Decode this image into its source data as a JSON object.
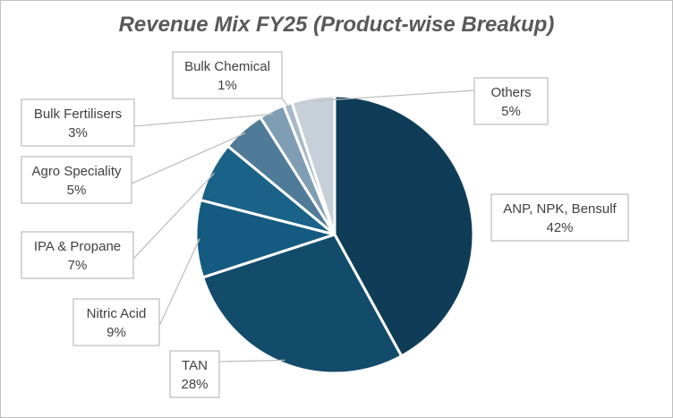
{
  "chart_data": {
    "type": "pie",
    "title": "Revenue Mix FY25 (Product-wise Breakup)",
    "slices": [
      {
        "name": "ANP, NPK, Bensulf",
        "value": 42,
        "label": "42%",
        "color": "#0f3d57"
      },
      {
        "name": "TAN",
        "value": 28,
        "label": "28%",
        "color": "#134b6b"
      },
      {
        "name": "Nitric Acid",
        "value": 9,
        "label": "9%",
        "color": "#155a80"
      },
      {
        "name": "IPA & Propane",
        "value": 7,
        "label": "7%",
        "color": "#1a6288"
      },
      {
        "name": "Agro Speciality",
        "value": 5,
        "label": "5%",
        "color": "#4f7a98"
      },
      {
        "name": "Bulk Fertilisers",
        "value": 3,
        "label": "3%",
        "color": "#7f9db3"
      },
      {
        "name": "Bulk Chemical",
        "value": 1,
        "label": "1%",
        "color": "#a7b8c6"
      },
      {
        "name": "Others",
        "value": 5,
        "label": "5%",
        "color": "#c7d0d8"
      }
    ],
    "legend": "none"
  }
}
